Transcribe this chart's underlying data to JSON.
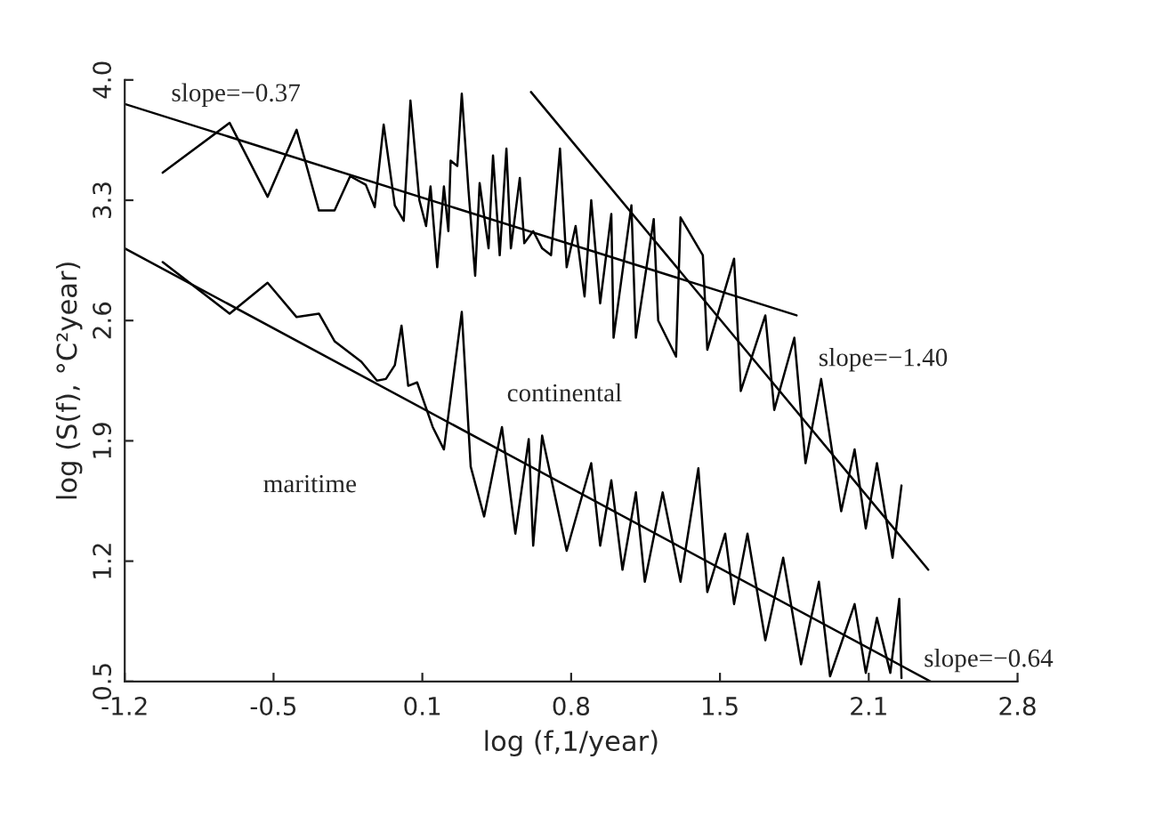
{
  "chart_data": {
    "type": "line",
    "xlabel": "log (f,1/year)",
    "ylabel": "log (S(f), °C²year)",
    "xlim": [
      -1.2,
      2.8
    ],
    "ylim": [
      0.5,
      4.0
    ],
    "xticks": [
      {
        "value": -1.2,
        "label": "-1.2"
      },
      {
        "value": -0.5333,
        "label": "-0.5"
      },
      {
        "value": 0.1333,
        "label": "0.1"
      },
      {
        "value": 0.8,
        "label": "0.8"
      },
      {
        "value": 1.4667,
        "label": "1.5"
      },
      {
        "value": 2.1333,
        "label": "2.1"
      },
      {
        "value": 2.8,
        "label": "2.8"
      }
    ],
    "yticks": [
      0.5,
      1.2,
      1.9,
      2.6,
      3.3,
      {
        "value": 4,
        "label": "4.0"
      }
    ],
    "grid": false,
    "legend": false,
    "marker": "none",
    "line_style": "solid",
    "series": [
      {
        "color": "#000000",
        "x": [
          -1.03,
          -0.73,
          -0.56,
          -0.43,
          -0.33,
          -0.26,
          -0.19,
          -0.12,
          -0.08,
          -0.04,
          0.01,
          0.05,
          0.08,
          0.12,
          0.15,
          0.17,
          0.2,
          0.23,
          0.25,
          0.26,
          0.29,
          0.31,
          0.34,
          0.37,
          0.39,
          0.43,
          0.45,
          0.48,
          0.51,
          0.53,
          0.57,
          0.59,
          0.63,
          0.67,
          0.71,
          0.75,
          0.78,
          0.82,
          0.86,
          0.89,
          0.93,
          0.98,
          0.99,
          1.07,
          1.09,
          1.17,
          1.19,
          1.27,
          1.29,
          1.39,
          1.41,
          1.53,
          1.56,
          1.67,
          1.71,
          1.8,
          1.85,
          1.92,
          2.01,
          2.07,
          2.12,
          2.17,
          2.24,
          2.28
        ],
        "values": [
          3.46,
          3.75,
          3.32,
          3.71,
          3.24,
          3.24,
          3.44,
          3.39,
          3.26,
          3.74,
          3.27,
          3.18,
          3.88,
          3.3,
          3.15,
          3.38,
          2.91,
          3.38,
          3.12,
          3.53,
          3.5,
          3.92,
          3.36,
          2.86,
          3.4,
          3.02,
          3.56,
          2.98,
          3.6,
          3.02,
          3.43,
          3.05,
          3.12,
          3.02,
          2.98,
          3.6,
          2.91,
          3.15,
          2.74,
          3.3,
          2.7,
          3.22,
          2.5,
          3.27,
          2.5,
          3.19,
          2.6,
          2.39,
          3.2,
          2.98,
          2.43,
          2.96,
          2.19,
          2.63,
          2.08,
          2.5,
          1.77,
          2.26,
          1.49,
          1.85,
          1.39,
          1.77,
          1.22,
          1.64
        ]
      },
      {
        "color": "#000000",
        "x": [
          -1.03,
          -0.73,
          -0.56,
          -0.43,
          -0.33,
          -0.26,
          -0.14,
          -0.07,
          -0.03,
          0.01,
          0.04,
          0.07,
          0.11,
          0.18,
          0.23,
          0.31,
          0.35,
          0.41,
          0.49,
          0.55,
          0.61,
          0.63,
          0.67,
          0.78,
          0.89,
          0.93,
          0.98,
          1.03,
          1.09,
          1.13,
          1.21,
          1.29,
          1.37,
          1.41,
          1.49,
          1.53,
          1.59,
          1.67,
          1.75,
          1.83,
          1.91,
          1.96,
          2.07,
          2.12,
          2.17,
          2.23,
          2.27,
          2.28
        ],
        "values": [
          2.94,
          2.64,
          2.82,
          2.62,
          2.64,
          2.48,
          2.36,
          2.25,
          2.26,
          2.34,
          2.57,
          2.22,
          2.24,
          1.98,
          1.85,
          2.65,
          1.75,
          1.46,
          1.98,
          1.36,
          1.91,
          1.29,
          1.93,
          1.26,
          1.77,
          1.29,
          1.67,
          1.15,
          1.6,
          1.08,
          1.6,
          1.08,
          1.74,
          1.02,
          1.36,
          0.95,
          1.36,
          0.74,
          1.22,
          0.6,
          1.08,
          0.53,
          0.95,
          0.55,
          0.87,
          0.55,
          0.98,
          0.52
        ]
      },
      {
        "color": "#000000",
        "x": [
          -1.2,
          1.81
        ],
        "values": [
          3.86,
          2.63
        ]
      },
      {
        "color": "#000000",
        "x": [
          0.62,
          2.4
        ],
        "values": [
          3.93,
          1.15
        ]
      },
      {
        "color": "#000000",
        "x": [
          -1.2,
          2.41
        ],
        "values": [
          3.02,
          0.5
        ]
      }
    ],
    "annotations": [
      "slope=−0.37",
      "slope=−1.40",
      "slope=−0.64",
      "continental",
      "maritime"
    ]
  }
}
